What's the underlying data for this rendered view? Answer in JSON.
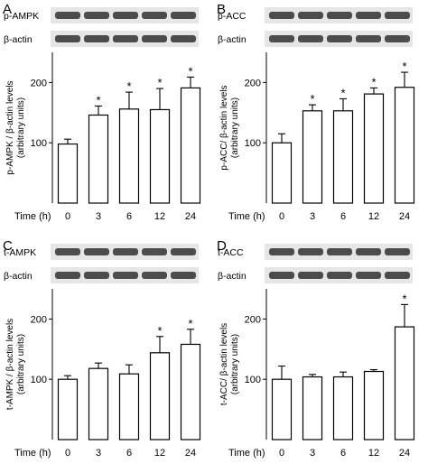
{
  "chart_data": [
    {
      "type": "bar",
      "panel_letter": "A",
      "blot_labels": [
        "p-AMPK",
        "β-actin"
      ],
      "ylabel_line1": "p-AMPK / β-actin levels",
      "ylabel_line2": "(arbitrary units)",
      "x_axis_title": "Time (h)",
      "categories": [
        "0",
        "3",
        "6",
        "12",
        "24"
      ],
      "values": [
        98,
        146,
        156,
        155,
        191
      ],
      "errors": [
        8,
        15,
        28,
        35,
        18
      ],
      "significant": [
        "",
        "*",
        "*",
        "*",
        "*"
      ],
      "ylim": [
        0,
        250
      ],
      "yticks": [
        "100",
        "200"
      ],
      "ytick_values": [
        100,
        200
      ]
    },
    {
      "type": "bar",
      "panel_letter": "B",
      "blot_labels": [
        "p-ACC",
        "β-actin"
      ],
      "ylabel_line1": "p-ACC/ β-actin levels",
      "ylabel_line2": "(arbitrary units)",
      "x_axis_title": "Time (h)",
      "categories": [
        "0",
        "3",
        "6",
        "12",
        "24"
      ],
      "values": [
        100,
        153,
        153,
        181,
        192
      ],
      "errors": [
        15,
        10,
        20,
        10,
        25
      ],
      "significant": [
        "",
        "*",
        "*",
        "*",
        "*"
      ],
      "ylim": [
        0,
        250
      ],
      "yticks": [
        "100",
        "200"
      ],
      "ytick_values": [
        100,
        200
      ]
    },
    {
      "type": "bar",
      "panel_letter": "C",
      "blot_labels": [
        "t-AMPK",
        "β-actin"
      ],
      "ylabel_line1": "t-AMPK / β-actin levels",
      "ylabel_line2": "(arbitrary units)",
      "x_axis_title": "Time (h)",
      "categories": [
        "0",
        "3",
        "6",
        "12",
        "24"
      ],
      "values": [
        100,
        118,
        109,
        144,
        158
      ],
      "errors": [
        6,
        9,
        15,
        27,
        25
      ],
      "significant": [
        "",
        "",
        "",
        "*",
        "*"
      ],
      "ylim": [
        0,
        250
      ],
      "yticks": [
        "100",
        "200"
      ],
      "ytick_values": [
        100,
        200
      ]
    },
    {
      "type": "bar",
      "panel_letter": "D",
      "blot_labels": [
        "t-ACC",
        "β-actin"
      ],
      "ylabel_line1": "t-ACC/ β-actin levels",
      "ylabel_line2": "(arbitrary units)",
      "x_axis_title": "Time (h)",
      "categories": [
        "0",
        "3",
        "6",
        "12",
        "24"
      ],
      "values": [
        100,
        104,
        104,
        113,
        187
      ],
      "errors": [
        22,
        4,
        8,
        3,
        37
      ],
      "significant": [
        "",
        "",
        "",
        "",
        "*"
      ],
      "ylim": [
        0,
        250
      ],
      "yticks": [
        "100",
        "200"
      ],
      "ytick_values": [
        100,
        200
      ]
    }
  ],
  "colors": {
    "bar_fill": "#ffffff",
    "bar_stroke": "#000000",
    "blot_background": "#e6e6e6",
    "blot_band": "#303030"
  }
}
